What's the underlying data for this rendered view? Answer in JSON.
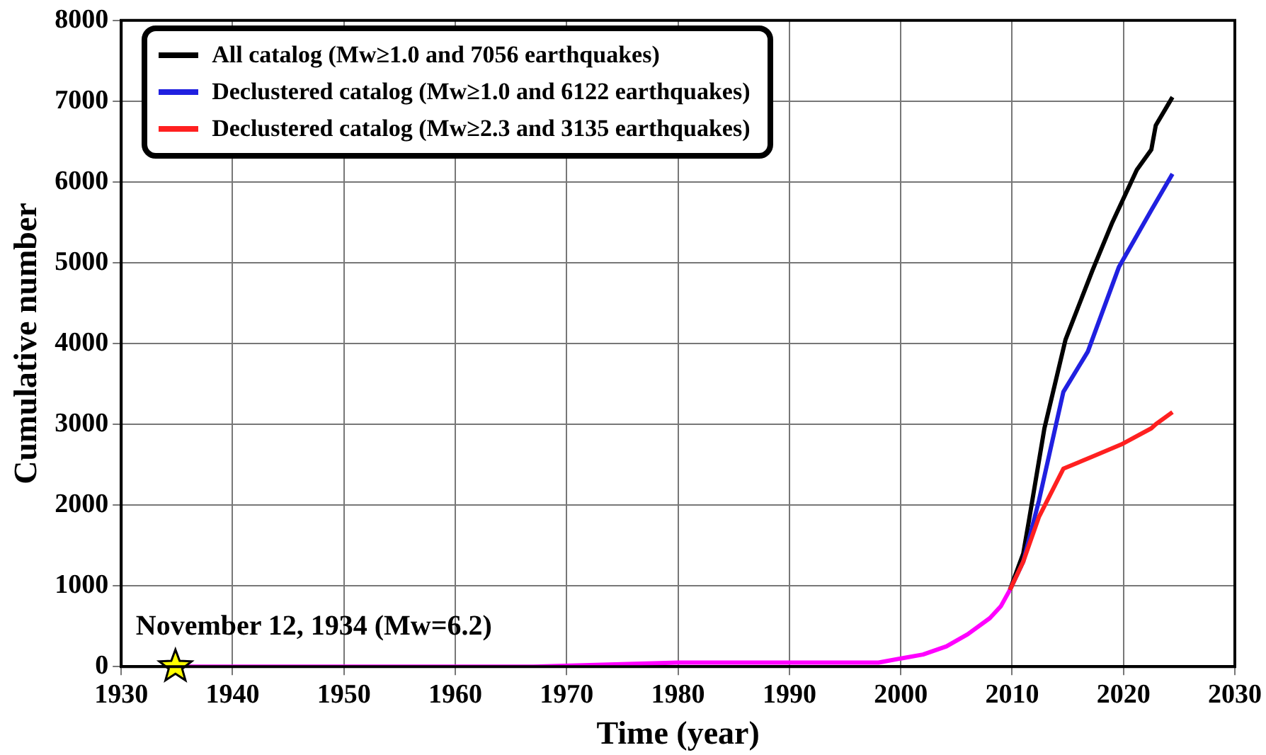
{
  "chart_data": {
    "type": "line",
    "xlabel": "Time (year)",
    "ylabel": "Cumulative number",
    "xlim": [
      1930,
      2030
    ],
    "xticks": [
      1930,
      1940,
      1950,
      1960,
      1970,
      1980,
      1990,
      2000,
      2010,
      2020,
      2030
    ],
    "ylim": [
      0,
      8000
    ],
    "yticks": [
      0,
      1000,
      2000,
      3000,
      4000,
      5000,
      6000,
      7000,
      8000
    ],
    "grid": true,
    "legend": "top left",
    "marker": "none",
    "line_style": "solid",
    "annotations": [
      {
        "text": "November 12, 1934 (Mw=6.2)",
        "x": 1934.87,
        "y": 0
      }
    ],
    "series": [
      {
        "color": "#ff00ff",
        "x": [
          1934.87,
          1950,
          1967,
          1980,
          1990,
          1998,
          2000,
          2002,
          2004.1,
          2006,
          2008,
          2009,
          2009.8
        ],
        "values": [
          0,
          0,
          0,
          50,
          50,
          50,
          100,
          150,
          250,
          400,
          600,
          750,
          950
        ]
      },
      {
        "name": "All catalog (Mw≥1.0 and 7056 earthquakes)",
        "color": "#000000",
        "x": [
          2009.8,
          2011.0,
          2011.5,
          2012.9,
          2014.8,
          2017.2,
          2019.0,
          2021.2,
          2022.5,
          2022.9,
          2024.4
        ],
        "values": [
          950,
          1400,
          1800,
          2950,
          4050,
          4900,
          5500,
          6150,
          6400,
          6700,
          7050
        ]
      },
      {
        "name": "Declustered catalog (Mw≥1.0 and 6122 earthquakes)",
        "color": "#2020e0",
        "x": [
          2009.8,
          2011.0,
          2012.4,
          2014.6,
          2016.8,
          2019.6,
          2022.5,
          2024.4
        ],
        "values": [
          950,
          1300,
          2050,
          3400,
          3900,
          4950,
          5650,
          6100
        ]
      },
      {
        "name": "Declustered catalog (Mw≥2.3 and 3135 earthquakes)",
        "color": "#ff2020",
        "x": [
          2009.8,
          2011.0,
          2012.4,
          2014.6,
          2017.2,
          2019.8,
          2022.5,
          2022.9,
          2024.4
        ],
        "values": [
          950,
          1300,
          1850,
          2450,
          2600,
          2750,
          2950,
          3000,
          3150
        ]
      },
      {
        "type": "scatter",
        "marker": "star",
        "color": "#ffff00",
        "x": [
          1934.87
        ],
        "values": [
          0
        ]
      }
    ]
  }
}
